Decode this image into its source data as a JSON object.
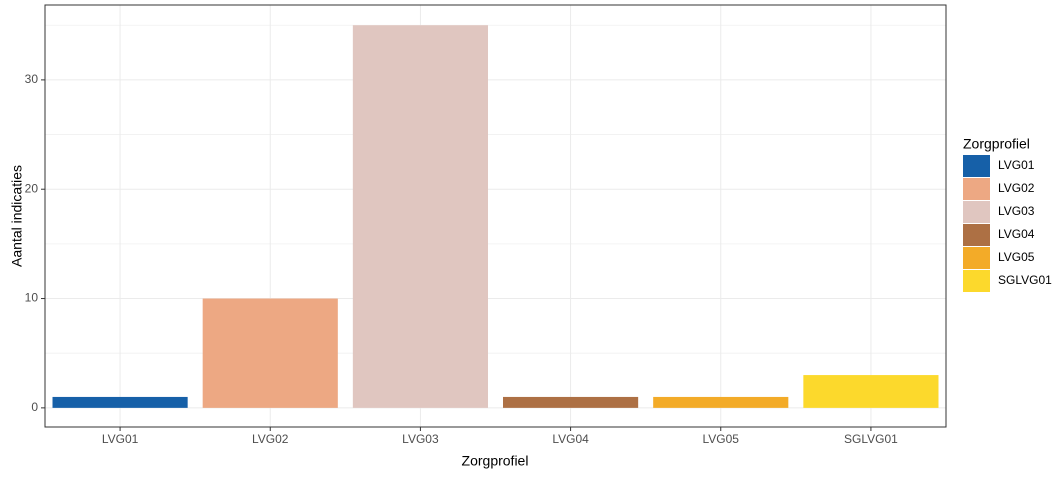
{
  "chart_data": {
    "type": "bar",
    "x_label": "Zorgprofiel",
    "y_label": "Aantal indicaties",
    "categories": [
      "LVG01",
      "LVG02",
      "LVG03",
      "LVG04",
      "LVG05",
      "SGLVG01"
    ],
    "values": [
      1,
      10,
      35,
      1,
      1,
      3
    ],
    "colors": [
      "#1660a8",
      "#eda883",
      "#e0c6c0",
      "#ad7044",
      "#f3ab28",
      "#fcd92c"
    ],
    "ylim": [
      -1.75,
      36.85
    ],
    "yticks": [
      0,
      10,
      20,
      30
    ],
    "minor_yticks": [
      5,
      15,
      25,
      35
    ],
    "grid": true,
    "legend_title": "Zorgprofiel",
    "legend": "right"
  }
}
